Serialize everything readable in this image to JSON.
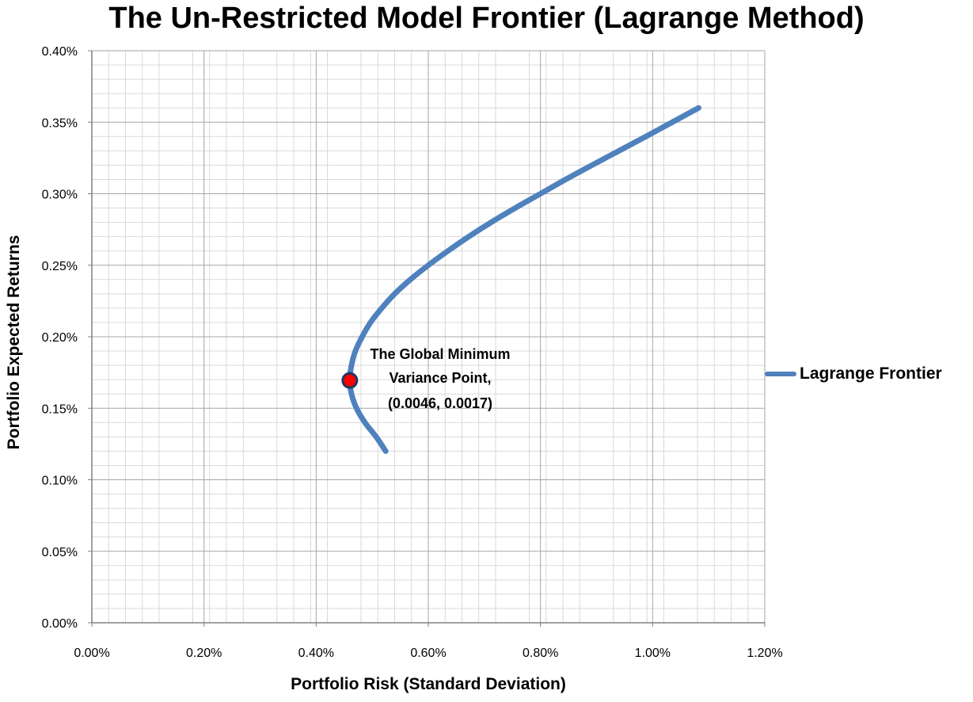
{
  "chart_data": {
    "type": "line",
    "title": "The Un-Restricted Model Frontier (Lagrange Method)",
    "xlabel": "Portfolio Risk (Standard Deviation)",
    "ylabel": "Portfolio Expected Returns",
    "xlim": [
      0,
      0.012
    ],
    "ylim": [
      0,
      0.004
    ],
    "x_ticks": [
      "0.00%",
      "0.20%",
      "0.40%",
      "0.60%",
      "0.80%",
      "1.00%",
      "1.20%"
    ],
    "y_ticks": [
      "0.00%",
      "0.05%",
      "0.10%",
      "0.15%",
      "0.20%",
      "0.25%",
      "0.30%",
      "0.35%",
      "0.40%"
    ],
    "grid": true,
    "legend_position": "right",
    "series": [
      {
        "name": "Lagrange Frontier",
        "color": "#4f81bd",
        "points": [
          [
            0.00524,
            0.0012
          ],
          [
            0.00507,
            0.0013
          ],
          [
            0.00487,
            0.0014
          ],
          [
            0.00472,
            0.0015
          ],
          [
            0.00463,
            0.0016
          ],
          [
            0.0046,
            0.0017
          ],
          [
            0.00463,
            0.0018
          ],
          [
            0.0047,
            0.0019
          ],
          [
            0.00482,
            0.002
          ],
          [
            0.00497,
            0.0021
          ],
          [
            0.00517,
            0.0022
          ],
          [
            0.0054,
            0.0023
          ],
          [
            0.00568,
            0.0024
          ],
          [
            0.006,
            0.0025
          ],
          [
            0.00635,
            0.0026
          ],
          [
            0.00672,
            0.0027
          ],
          [
            0.00712,
            0.0028
          ],
          [
            0.00755,
            0.0029
          ],
          [
            0.008,
            0.003
          ],
          [
            0.00845,
            0.0031
          ],
          [
            0.00892,
            0.0032
          ],
          [
            0.0094,
            0.0033
          ],
          [
            0.00988,
            0.0034
          ],
          [
            0.01035,
            0.0035
          ],
          [
            0.01082,
            0.0036
          ]
        ]
      }
    ],
    "annotation": {
      "lines": [
        "The Global Minimum",
        "Variance Point,",
        "(0.0046, 0.0017)"
      ],
      "x": 0.0046,
      "y": 0.0017,
      "marker_color": "#ff0000"
    }
  }
}
